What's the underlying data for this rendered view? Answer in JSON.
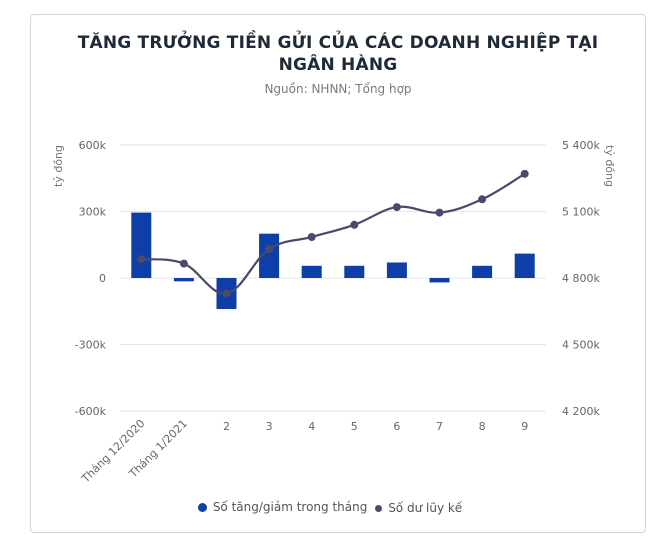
{
  "title_line1": "TĂNG TRƯỞNG TIỀN GỬI CỦA CÁC DOANH NGHIỆP TẠI",
  "title_line2": "NGÂN HÀNG",
  "subtitle": "Nguồn: NHNN; Tổng hợp",
  "chart_data": {
    "type": "bar",
    "categories": [
      "Tháng 12/2020",
      "Tháng 1/2021",
      "2",
      "3",
      "4",
      "5",
      "6",
      "7",
      "8",
      "9"
    ],
    "series": [
      {
        "name": "Số tăng/giảm trong tháng",
        "type": "bar",
        "axis": "left",
        "values": [
          295000,
          -15000,
          -140000,
          200000,
          55000,
          55000,
          70000,
          -20000,
          55000,
          110000
        ]
      },
      {
        "name": "Số dư lũy kế",
        "type": "line",
        "axis": "right",
        "values": [
          4885000,
          4865000,
          4730000,
          4930000,
          4985000,
          5040000,
          5120000,
          5095000,
          5155000,
          5270000
        ]
      }
    ],
    "ylabel_left": "tỷ đồng",
    "ylabel_right": "tỷ đồng",
    "ylim_left": [
      -600000,
      600000
    ],
    "ylim_right": [
      4200000,
      5400000
    ],
    "yticks_left": [
      "600k",
      "300k",
      "0",
      "-300k",
      "-600k"
    ],
    "yticks_right": [
      "5 400k",
      "5 100k",
      "4 800k",
      "4 500k",
      "4 200k"
    ],
    "grid": true,
    "legend": "bottom-center",
    "colors": {
      "bar": "#0e3ea8",
      "line": "#4a4a6a",
      "grid": "#e6e6e6"
    }
  }
}
